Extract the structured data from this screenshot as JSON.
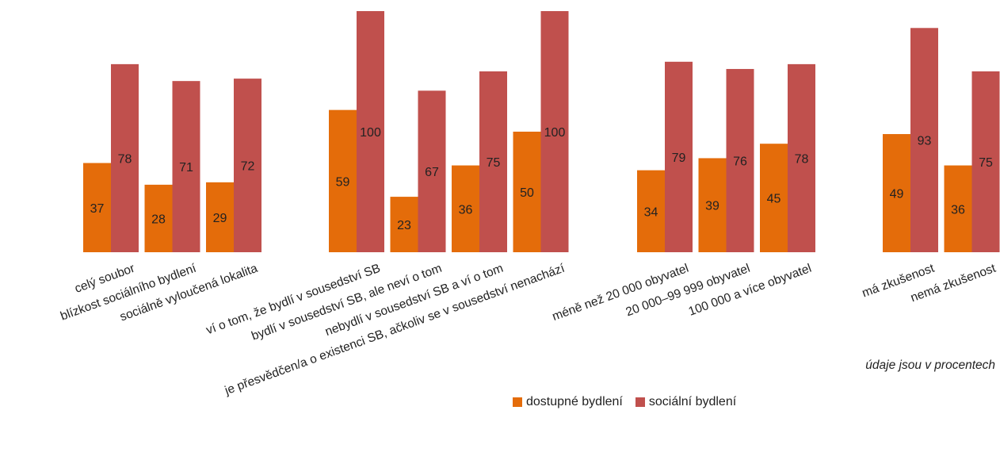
{
  "chart_data": {
    "type": "bar",
    "categories": [
      "celý soubor",
      "blízkost sociálního bydlení",
      "sociálně vyloučená lokalita",
      "ví o tom, že bydlí v sousedství SB",
      "bydlí v sousedství SB, ale neví o tom",
      "nebydlí v sousedství SB a ví o tom",
      "je přesvědčen/a o existenci SB, ačkoliv se v sousedství nenachází",
      "méně než 20 000 obyvatel",
      "20 000–99 999 obyvatel",
      "100 000 a více obyvatel",
      "má zkušenost",
      "nemá zkušenost"
    ],
    "groups": [
      [
        0,
        1,
        2
      ],
      [
        3,
        4,
        5,
        6
      ],
      [
        7,
        8,
        9
      ],
      [
        10,
        11
      ]
    ],
    "series": [
      {
        "name": "dostupné bydlení",
        "color": "#E46C0A",
        "values": [
          37,
          28,
          29,
          59,
          23,
          36,
          50,
          34,
          39,
          45,
          49,
          36
        ]
      },
      {
        "name": "sociální bydlení",
        "color": "#C0504D",
        "values": [
          78,
          71,
          72,
          100,
          67,
          75,
          100,
          79,
          76,
          78,
          93,
          75
        ]
      }
    ],
    "ylim": [
      0,
      100
    ],
    "grid": false,
    "legend_position": "bottom",
    "note": "údaje jsou v procentech"
  }
}
